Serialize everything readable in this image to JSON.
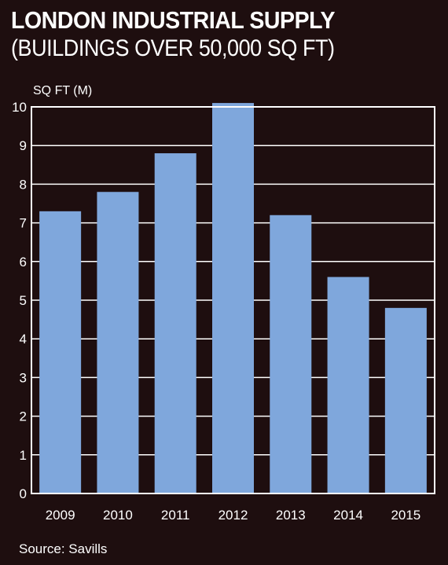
{
  "title": "LONDON INDUSTRIAL SUPPLY",
  "subtitle": "(BUILDINGS OVER 50,000 SQ FT)",
  "source": "Source: Savills",
  "colors": {
    "background": "#1e0e0f",
    "bar": "#7fa7dc",
    "frame": "#ffffff",
    "text": "#ffffff"
  },
  "chart_data": {
    "type": "bar",
    "title": "LONDON INDUSTRIAL SUPPLY",
    "subtitle": "(BUILDINGS OVER 50,000 SQ FT)",
    "ylabel": "SQ FT (M)",
    "xlabel": "",
    "categories": [
      "2009",
      "2010",
      "2011",
      "2012",
      "2013",
      "2014",
      "2015"
    ],
    "values": [
      7.3,
      7.8,
      8.8,
      10.1,
      7.2,
      5.6,
      4.8
    ],
    "ylim": [
      0,
      10
    ],
    "yticks": [
      "0",
      "1",
      "2",
      "3",
      "4",
      "5",
      "6",
      "7",
      "8",
      "9",
      "10"
    ],
    "grid": true,
    "legend": "none"
  }
}
